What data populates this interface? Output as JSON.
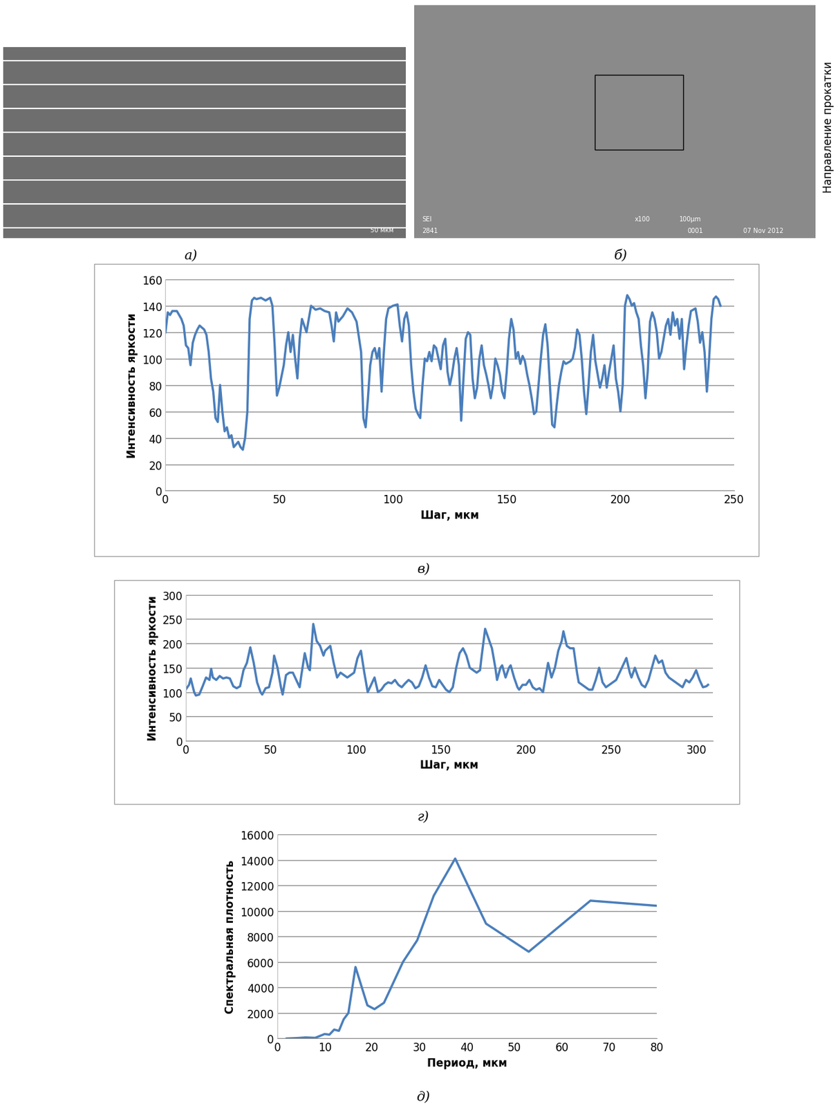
{
  "images": [
    {
      "caption": "а)",
      "texts": [
        "50 мкм"
      ]
    },
    {
      "caption": "б)",
      "texts": [
        "SEI",
        "2841",
        "x100",
        "100µm",
        "0001",
        "07 Nov 2012"
      ],
      "side_label": "Направление прокатки"
    }
  ],
  "chart_data": [
    {
      "type": "line",
      "caption": "в)",
      "xlabel": "Шаг, мкм",
      "ylabel": "Интенсивность яркости",
      "color": "#4a7ebb",
      "grid": true,
      "xlim": [
        0,
        250
      ],
      "xticks": [
        0,
        50,
        100,
        150,
        200,
        250
      ],
      "ylim": [
        0,
        160
      ],
      "yticks": [
        0,
        20,
        40,
        60,
        80,
        100,
        120,
        140,
        160
      ],
      "x": [
        0,
        1,
        2,
        3,
        5,
        7,
        8,
        9,
        10,
        11,
        12,
        13,
        14,
        15,
        17,
        18,
        19,
        20,
        21,
        22,
        23,
        24,
        25,
        26,
        27,
        28,
        29,
        30,
        31,
        32,
        33,
        34,
        35,
        36,
        37,
        38,
        39,
        40,
        42,
        44,
        46,
        47,
        48,
        49,
        50,
        52,
        53,
        54,
        55,
        56,
        57,
        58,
        59,
        60,
        62,
        63,
        64,
        66,
        68,
        70,
        72,
        73,
        74,
        75,
        76,
        78,
        80,
        82,
        84,
        86,
        87,
        88,
        89,
        90,
        91,
        92,
        93,
        94,
        95,
        96,
        97,
        98,
        100,
        102,
        103,
        104,
        105,
        106,
        107,
        108,
        109,
        110,
        111,
        112,
        113,
        114,
        115,
        116,
        117,
        118,
        119,
        120,
        121,
        122,
        123,
        124,
        125,
        126,
        127,
        128,
        129,
        130,
        131,
        132,
        133,
        134,
        135,
        136,
        137,
        138,
        139,
        140,
        141,
        142,
        143,
        144,
        145,
        146,
        147,
        148,
        149,
        150,
        151,
        152,
        153,
        154,
        155,
        156,
        157,
        158,
        159,
        160,
        161,
        162,
        163,
        164,
        165,
        166,
        167,
        168,
        169,
        170,
        171,
        172,
        173,
        174,
        175,
        176,
        177,
        178,
        179,
        180,
        181,
        182,
        183,
        184,
        185,
        186,
        187,
        188,
        189,
        190,
        191,
        192,
        193,
        194,
        195,
        196,
        197,
        198,
        199,
        200,
        201,
        202,
        203,
        204,
        205,
        206,
        207,
        208,
        209,
        210,
        211,
        212,
        213,
        214,
        215,
        216,
        217,
        218,
        219,
        220,
        221,
        222,
        223,
        224,
        225,
        226,
        227,
        228,
        229,
        230,
        231,
        232,
        233,
        234,
        235,
        236,
        237,
        238,
        239,
        240,
        241,
        242,
        243,
        244
      ],
      "values": [
        120,
        135,
        133,
        136,
        136,
        130,
        125,
        110,
        108,
        95,
        112,
        118,
        122,
        125,
        122,
        118,
        105,
        85,
        75,
        55,
        52,
        80,
        60,
        45,
        48,
        40,
        42,
        33,
        35,
        37,
        33,
        31,
        40,
        60,
        130,
        144,
        146,
        145,
        146,
        144,
        146,
        140,
        110,
        72,
        78,
        95,
        110,
        120,
        105,
        118,
        100,
        85,
        115,
        130,
        120,
        130,
        140,
        137,
        138,
        136,
        135,
        125,
        113,
        135,
        128,
        132,
        138,
        135,
        128,
        105,
        55,
        48,
        70,
        95,
        105,
        108,
        100,
        108,
        75,
        105,
        130,
        138,
        140,
        141,
        125,
        113,
        130,
        135,
        125,
        95,
        75,
        62,
        58,
        55,
        80,
        100,
        98,
        105,
        98,
        110,
        108,
        100,
        92,
        110,
        115,
        90,
        80,
        88,
        100,
        108,
        95,
        53,
        85,
        115,
        120,
        118,
        85,
        70,
        78,
        100,
        110,
        95,
        88,
        80,
        70,
        80,
        100,
        95,
        88,
        75,
        70,
        90,
        115,
        130,
        122,
        100,
        105,
        96,
        102,
        98,
        88,
        80,
        70,
        58,
        60,
        80,
        100,
        118,
        126,
        110,
        80,
        50,
        48,
        65,
        80,
        90,
        98,
        96,
        97,
        98,
        100,
        108,
        122,
        118,
        100,
        75,
        58,
        80,
        105,
        118,
        98,
        88,
        78,
        85,
        95,
        78,
        90,
        100,
        110,
        85,
        75,
        60,
        80,
        140,
        148,
        145,
        140,
        142,
        135,
        130,
        110,
        95,
        70,
        90,
        128,
        135,
        130,
        120,
        100,
        105,
        115,
        125,
        130,
        118,
        135,
        125,
        130,
        115,
        130,
        92,
        110,
        125,
        136,
        137,
        138,
        128,
        112,
        120,
        105,
        75,
        100,
        130,
        145,
        147,
        145,
        140
      ]
    },
    {
      "type": "line",
      "caption": "г)",
      "xlabel": "Шаг, мкм",
      "ylabel": "Интенсивность яркости",
      "color": "#4a7ebb",
      "grid": true,
      "xlim": [
        0,
        310
      ],
      "xticks": [
        0,
        50,
        100,
        150,
        200,
        250,
        300
      ],
      "ylim": [
        0,
        300
      ],
      "yticks": [
        0,
        50,
        100,
        150,
        200,
        250,
        300
      ],
      "x": [
        0,
        2,
        3,
        5,
        6,
        8,
        10,
        12,
        14,
        15,
        16,
        18,
        20,
        22,
        24,
        26,
        28,
        30,
        32,
        34,
        36,
        38,
        40,
        42,
        44,
        45,
        47,
        49,
        51,
        52,
        54,
        56,
        57,
        59,
        61,
        63,
        65,
        67,
        68,
        70,
        72,
        73,
        75,
        77,
        79,
        81,
        82,
        85,
        87,
        89,
        91,
        93,
        95,
        97,
        99,
        101,
        103,
        105,
        107,
        109,
        111,
        113,
        115,
        117,
        119,
        121,
        123,
        125,
        127,
        129,
        131,
        133,
        135,
        137,
        139,
        141,
        143,
        145,
        147,
        149,
        151,
        153,
        155,
        157,
        159,
        161,
        163,
        165,
        167,
        169,
        171,
        173,
        174,
        176,
        178,
        180,
        182,
        183,
        185,
        186,
        188,
        190,
        191,
        193,
        195,
        196,
        198,
        200,
        202,
        204,
        206,
        208,
        210,
        212,
        213,
        215,
        217,
        219,
        221,
        222,
        224,
        226,
        228,
        230,
        231,
        233,
        235,
        237,
        239,
        241,
        243,
        245,
        247,
        249,
        251,
        253,
        255,
        257,
        259,
        261,
        262,
        264,
        266,
        268,
        270,
        272,
        274,
        276,
        278,
        280,
        282,
        284,
        286,
        288,
        290,
        292,
        294,
        296,
        298,
        300,
        302,
        304,
        306,
        307
      ],
      "values": [
        105,
        115,
        128,
        100,
        93,
        95,
        112,
        130,
        125,
        148,
        130,
        125,
        133,
        128,
        130,
        128,
        112,
        108,
        112,
        145,
        160,
        192,
        160,
        120,
        100,
        95,
        108,
        110,
        140,
        175,
        150,
        110,
        95,
        135,
        140,
        140,
        125,
        110,
        135,
        180,
        150,
        145,
        240,
        205,
        195,
        175,
        185,
        195,
        160,
        130,
        140,
        135,
        130,
        135,
        140,
        170,
        185,
        140,
        100,
        115,
        130,
        100,
        105,
        115,
        120,
        118,
        125,
        115,
        110,
        118,
        125,
        120,
        108,
        112,
        130,
        155,
        130,
        112,
        110,
        125,
        115,
        105,
        100,
        110,
        150,
        180,
        190,
        175,
        150,
        145,
        140,
        145,
        175,
        230,
        210,
        190,
        150,
        125,
        150,
        155,
        130,
        150,
        155,
        130,
        110,
        105,
        115,
        115,
        125,
        110,
        105,
        108,
        100,
        140,
        160,
        130,
        150,
        185,
        205,
        225,
        195,
        190,
        190,
        140,
        120,
        115,
        110,
        105,
        105,
        125,
        150,
        120,
        110,
        115,
        120,
        125,
        140,
        155,
        170,
        140,
        130,
        150,
        130,
        115,
        110,
        125,
        150,
        175,
        160,
        165,
        140,
        130,
        125,
        120,
        115,
        110,
        125,
        120,
        130,
        145,
        125,
        110,
        112,
        115
      ]
    },
    {
      "type": "line",
      "caption": "д)",
      "xlabel": "Период, мкм",
      "ylabel": "Спектральная плотность",
      "color": "#4a7ebb",
      "grid": true,
      "xlim": [
        0,
        80
      ],
      "xticks": [
        0,
        10,
        20,
        30,
        40,
        50,
        60,
        70,
        80
      ],
      "ylim": [
        0,
        16000
      ],
      "yticks": [
        0,
        2000,
        4000,
        6000,
        8000,
        10000,
        12000,
        14000,
        16000
      ],
      "x": [
        2,
        4,
        6,
        8,
        10,
        11,
        12,
        13,
        14,
        15,
        16.5,
        17,
        19,
        20.5,
        22.5,
        26.5,
        29.5,
        33,
        37.5,
        44,
        53,
        66,
        80
      ],
      "values": [
        0,
        30,
        80,
        50,
        350,
        300,
        700,
        600,
        1500,
        2000,
        5600,
        5000,
        2600,
        2300,
        2800,
        6000,
        7700,
        11200,
        14100,
        9000,
        6800,
        10800,
        10400
      ]
    }
  ]
}
